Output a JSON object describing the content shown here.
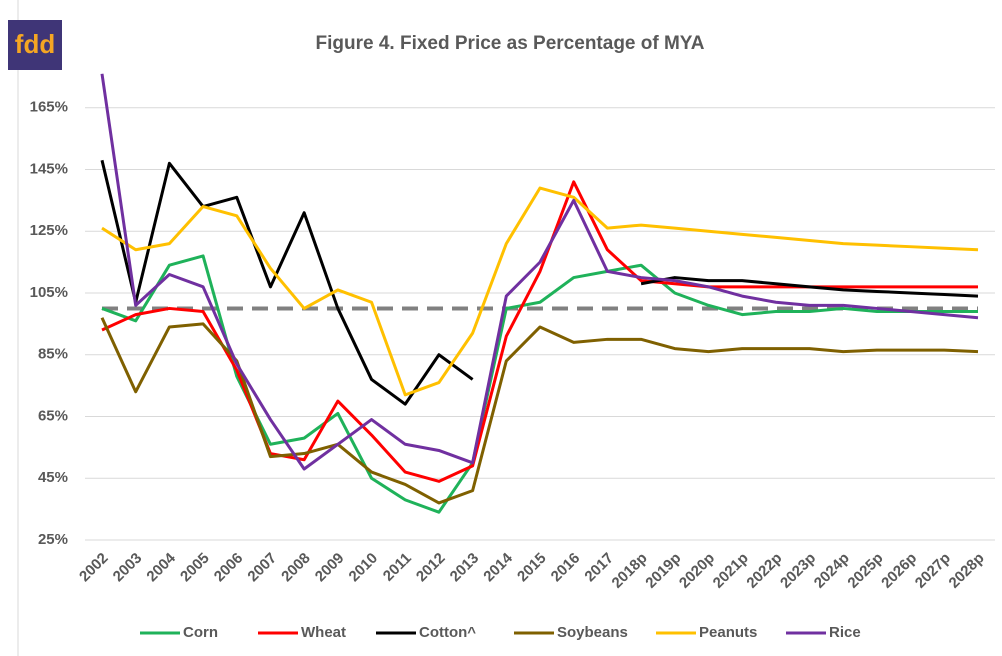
{
  "logo": "fdd",
  "chart_data": {
    "type": "line",
    "title": "Figure 4. Fixed Price as Percentage of MYA",
    "categories": [
      "2002",
      "2003",
      "2004",
      "2005",
      "2006",
      "2007",
      "2008",
      "2009",
      "2010",
      "2011",
      "2012",
      "2013",
      "2014",
      "2015",
      "2016",
      "2017",
      "2018p",
      "2019p",
      "2020p",
      "2021p",
      "2022p",
      "2023p",
      "2024p",
      "2025p",
      "2026p",
      "2027p",
      "2028p"
    ],
    "series": [
      {
        "name": "Corn",
        "color": "#1fb25a",
        "values": [
          100,
          96,
          114,
          117,
          78,
          56,
          58,
          66,
          45,
          38,
          34,
          50,
          100,
          102,
          110,
          112,
          114,
          105,
          101,
          98,
          99,
          99,
          100,
          99,
          99,
          99,
          99
        ]
      },
      {
        "name": "Wheat",
        "color": "#ff0000",
        "values": [
          93,
          98,
          100,
          99,
          80,
          53,
          51,
          70,
          59,
          47,
          44,
          49,
          91,
          112,
          141,
          119,
          109,
          108,
          107,
          107,
          107,
          107,
          107,
          107,
          107,
          107,
          107
        ]
      },
      {
        "name": "Cotton^",
        "color": "#000000",
        "values": [
          148,
          102,
          147,
          133,
          136,
          107,
          131,
          100,
          77,
          69,
          85,
          77,
          null,
          null,
          null,
          null,
          108,
          110,
          109,
          109,
          108,
          107,
          106,
          105.5,
          105,
          104.5,
          104
        ]
      },
      {
        "name": "Soybeans",
        "color": "#7f6000",
        "values": [
          97,
          73,
          94,
          95,
          83,
          52,
          53,
          56,
          47,
          43,
          37,
          41,
          83,
          94,
          89,
          90,
          90,
          87,
          86,
          87,
          87,
          87,
          86,
          86.5,
          86.5,
          86.5,
          86
        ]
      },
      {
        "name": "Peanuts",
        "color": "#ffc000",
        "values": [
          126,
          119,
          121,
          133,
          130,
          113,
          100,
          106,
          102,
          72,
          76,
          92,
          121,
          139,
          136,
          126,
          127,
          126,
          125,
          124,
          123,
          122,
          121,
          120.5,
          120,
          119.5,
          119
        ]
      },
      {
        "name": "Rice",
        "color": "#7030a0",
        "values": [
          176,
          101,
          111,
          107,
          82,
          64,
          48,
          56,
          64,
          56,
          54,
          50,
          104,
          115,
          135,
          112,
          110,
          109,
          107,
          104,
          102,
          101,
          101,
          100,
          99,
          98,
          97
        ]
      }
    ],
    "reference_line": {
      "value": 100,
      "color": "#808080"
    },
    "ylim": [
      25,
      185
    ],
    "yticks": [
      {
        "value": 25,
        "label": "25%"
      },
      {
        "value": 45,
        "label": "45%"
      },
      {
        "value": 65,
        "label": "65%"
      },
      {
        "value": 85,
        "label": "85%"
      },
      {
        "value": 105,
        "label": "105%"
      },
      {
        "value": 125,
        "label": "125%"
      },
      {
        "value": 145,
        "label": "145%"
      },
      {
        "value": 165,
        "label": "165%"
      }
    ],
    "grid": true,
    "legend": "bottom"
  }
}
